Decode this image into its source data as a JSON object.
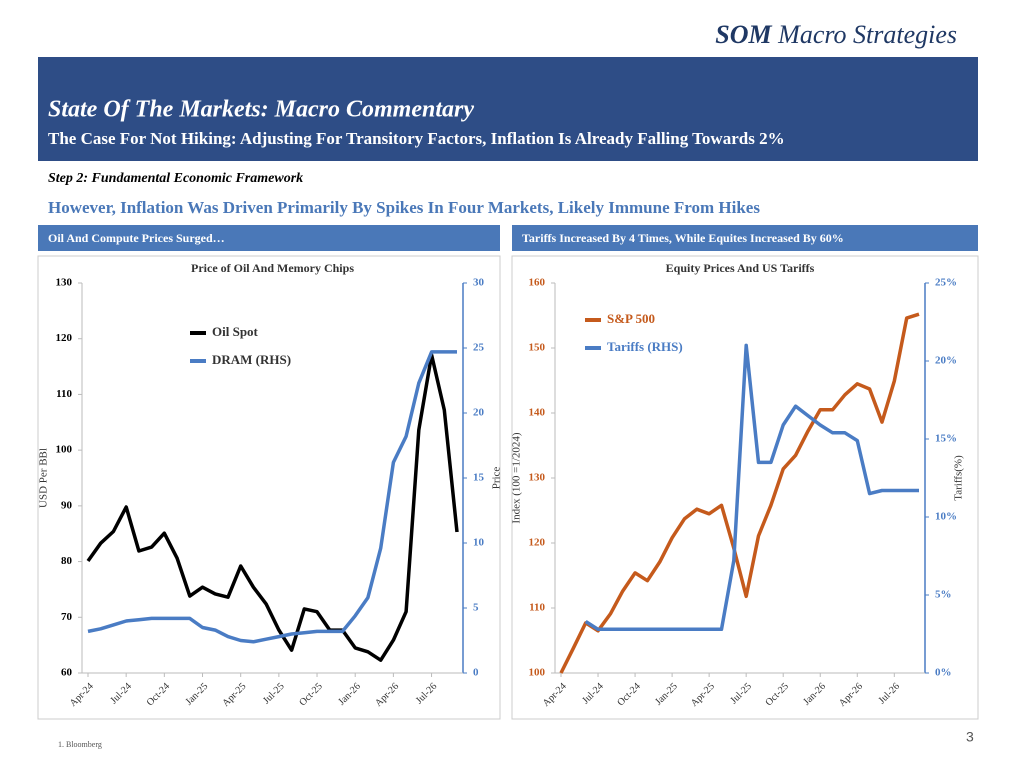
{
  "header": {
    "brand_bold": "SOM",
    "brand_rest": "Macro Strategies",
    "title": "State Of The Markets: Macro Commentary",
    "subtitle": "The Case For Not Hiking:  Adjusting For Transitory Factors, Inflation Is Already Falling Towards 2%"
  },
  "step": "Step 2: Fundamental Economic Framework",
  "headline": "However, Inflation Was Driven Primarily By Spikes In Four Markets, Likely Immune From Hikes",
  "panels": [
    "Oil And Compute Prices Surged…",
    "Tariffs Increased By 4 Times, While  Equites Increased By 60%"
  ],
  "footnote": "1. Bloomberg",
  "page_number": "3",
  "chart_data": [
    {
      "type": "line",
      "title": "Price of Oil And Memory Chips",
      "categories": [
        "Apr-24",
        null,
        null,
        "Jul-24",
        null,
        null,
        "Oct-24",
        null,
        null,
        "Jan-25",
        null,
        null,
        "Apr-25",
        null,
        null,
        "Jul-25",
        null,
        null,
        "Oct-25",
        null,
        null,
        "Jan-26",
        null,
        null,
        "Apr-26",
        null,
        null,
        "Jul-26",
        null,
        null
      ],
      "series": [
        {
          "name": "Oil Spot",
          "color": "#000000",
          "values": [
            80.1,
            83.3,
            85.4,
            89.8,
            81.9,
            82.6,
            85.1,
            80.6,
            73.8,
            75.4,
            74.2,
            73.6,
            79.2,
            75.4,
            72.4,
            67.7,
            64.1,
            71.5,
            71.0,
            67.7,
            67.7,
            64.5,
            63.8,
            62.3,
            65.9,
            71.0,
            103.6,
            117.1,
            107.2,
            85.3
          ]
        },
        {
          "name": "DRAM (RHS)",
          "color": "#4a7cc4",
          "axis": "y2",
          "values": [
            3.2,
            3.4,
            3.7,
            4.0,
            4.1,
            4.2,
            4.2,
            4.2,
            4.2,
            3.5,
            3.3,
            2.8,
            2.5,
            2.4,
            2.6,
            2.8,
            3.0,
            3.1,
            3.2,
            3.2,
            3.2,
            4.4,
            5.8,
            9.6,
            16.2,
            18.2,
            22.3,
            24.7,
            24.7,
            24.7
          ]
        }
      ],
      "ylabel": "USD Per BBl",
      "y2label": "Price",
      "ylim": [
        60,
        130
      ],
      "yticks": [
        60,
        70,
        80,
        90,
        100,
        110,
        120,
        130
      ],
      "y2lim": [
        0,
        30
      ],
      "y2ticks": [
        0,
        5,
        10,
        15,
        20,
        25,
        30
      ]
    },
    {
      "type": "line",
      "title": "Equity Prices And US Tariffs",
      "categories": [
        "Apr-24",
        null,
        null,
        "Jul-24",
        null,
        null,
        "Oct-24",
        null,
        null,
        "Jan-25",
        null,
        null,
        "Apr-25",
        null,
        null,
        "Jul-25",
        null,
        null,
        "Oct-25",
        null,
        null,
        "Jan-26",
        null,
        null,
        "Apr-26",
        null,
        null,
        "Jul-26",
        null,
        null
      ],
      "series": [
        {
          "name": "S&P 500",
          "color": "#c55a1c",
          "values": [
            100.0,
            103.8,
            107.7,
            106.5,
            109.1,
            112.6,
            115.4,
            114.2,
            117.1,
            120.8,
            123.7,
            125.2,
            124.5,
            125.8,
            119.2,
            111.8,
            121.1,
            125.8,
            131.4,
            133.5,
            137.2,
            140.5,
            140.5,
            142.8,
            144.5,
            143.7,
            138.6,
            144.9,
            154.6,
            155.2
          ]
        },
        {
          "name": "Tariffs (RHS)",
          "color": "#4a7cc4",
          "axis": "y2",
          "values": [
            null,
            null,
            3.3,
            2.8,
            2.8,
            2.8,
            2.8,
            2.8,
            2.8,
            2.8,
            2.8,
            2.8,
            2.8,
            2.8,
            7.2,
            21.0,
            13.5,
            13.5,
            15.9,
            17.1,
            16.5,
            15.9,
            15.4,
            15.4,
            14.9,
            11.5,
            11.7,
            11.7,
            11.7,
            11.7
          ]
        }
      ],
      "ylabel": "Index (100 =1/2024)",
      "y2label": "Tariffs(%)",
      "ylim": [
        100,
        160
      ],
      "yticks": [
        100,
        110,
        120,
        130,
        140,
        150,
        160
      ],
      "y2lim": [
        0,
        25
      ],
      "y2ticks": [
        {
          "value": 0,
          "label": "0%"
        },
        {
          "value": 5,
          "label": "5%"
        },
        {
          "value": 10,
          "label": "10%"
        },
        {
          "value": 15,
          "label": "15%"
        },
        {
          "value": 20,
          "label": "20%"
        },
        {
          "value": 25,
          "label": "25%"
        }
      ]
    }
  ]
}
